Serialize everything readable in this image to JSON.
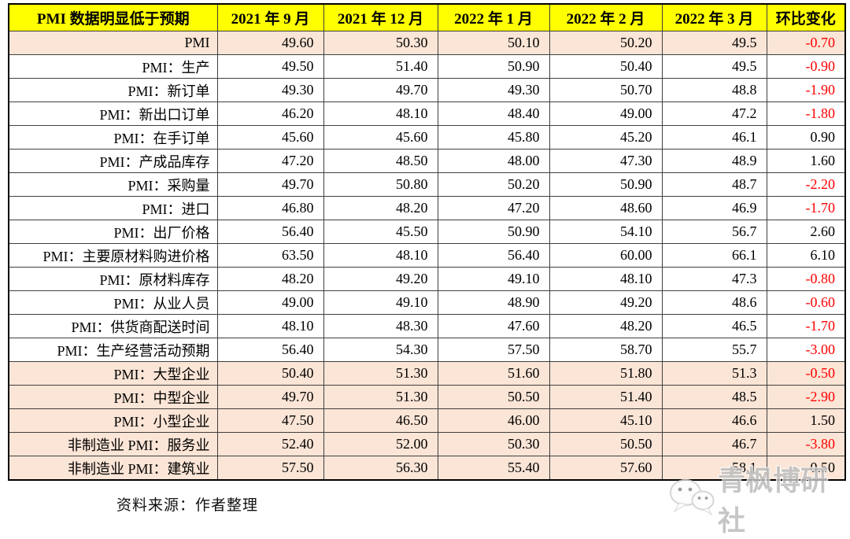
{
  "chart_data": {
    "type": "table",
    "title": "PMI 数据明显低于预期",
    "columns": [
      "PMI 数据明显低于预期",
      "2021 年 9 月",
      "2021 年 12 月",
      "2022 年 1 月",
      "2022 年 2 月",
      "2022 年 3 月",
      "环比变化"
    ],
    "rows": [
      {
        "label": "PMI",
        "values": [
          "49.60",
          "50.30",
          "50.10",
          "50.20",
          "49.5"
        ],
        "change": "-0.70",
        "highlight": true
      },
      {
        "label": "PMI：生产",
        "values": [
          "49.50",
          "51.40",
          "50.90",
          "50.40",
          "49.5"
        ],
        "change": "-0.90",
        "highlight": false
      },
      {
        "label": "PMI：新订单",
        "values": [
          "49.30",
          "49.70",
          "49.30",
          "50.70",
          "48.8"
        ],
        "change": "-1.90",
        "highlight": false
      },
      {
        "label": "PMI：新出口订单",
        "values": [
          "46.20",
          "48.10",
          "48.40",
          "49.00",
          "47.2"
        ],
        "change": "-1.80",
        "highlight": false
      },
      {
        "label": "PMI：在手订单",
        "values": [
          "45.60",
          "45.60",
          "45.80",
          "45.20",
          "46.1"
        ],
        "change": "0.90",
        "highlight": false
      },
      {
        "label": "PMI：产成品库存",
        "values": [
          "47.20",
          "48.50",
          "48.00",
          "47.30",
          "48.9"
        ],
        "change": "1.60",
        "highlight": false
      },
      {
        "label": "PMI：采购量",
        "values": [
          "49.70",
          "50.80",
          "50.20",
          "50.90",
          "48.7"
        ],
        "change": "-2.20",
        "highlight": false
      },
      {
        "label": "PMI：进口",
        "values": [
          "46.80",
          "48.20",
          "47.20",
          "48.60",
          "46.9"
        ],
        "change": "-1.70",
        "highlight": false
      },
      {
        "label": "PMI：出厂价格",
        "values": [
          "56.40",
          "45.50",
          "50.90",
          "54.10",
          "56.7"
        ],
        "change": "2.60",
        "highlight": false
      },
      {
        "label": "PMI：主要原材料购进价格",
        "values": [
          "63.50",
          "48.10",
          "56.40",
          "60.00",
          "66.1"
        ],
        "change": "6.10",
        "highlight": false
      },
      {
        "label": "PMI：原材料库存",
        "values": [
          "48.20",
          "49.20",
          "49.10",
          "48.10",
          "47.3"
        ],
        "change": "-0.80",
        "highlight": false
      },
      {
        "label": "PMI：从业人员",
        "values": [
          "49.00",
          "49.10",
          "48.90",
          "49.20",
          "48.6"
        ],
        "change": "-0.60",
        "highlight": false
      },
      {
        "label": "PMI：供货商配送时间",
        "values": [
          "48.10",
          "48.30",
          "47.60",
          "48.20",
          "46.5"
        ],
        "change": "-1.70",
        "highlight": false
      },
      {
        "label": "PMI：生产经营活动预期",
        "values": [
          "56.40",
          "54.30",
          "57.50",
          "58.70",
          "55.7"
        ],
        "change": "-3.00",
        "highlight": false
      },
      {
        "label": "PMI：大型企业",
        "values": [
          "50.40",
          "51.30",
          "51.60",
          "51.80",
          "51.3"
        ],
        "change": "-0.50",
        "highlight": true
      },
      {
        "label": "PMI：中型企业",
        "values": [
          "49.70",
          "51.30",
          "50.50",
          "51.40",
          "48.5"
        ],
        "change": "-2.90",
        "highlight": true
      },
      {
        "label": "PMI：小型企业",
        "values": [
          "47.50",
          "46.50",
          "46.00",
          "45.10",
          "46.6"
        ],
        "change": "1.50",
        "highlight": true
      },
      {
        "label": "非制造业 PMI：服务业",
        "values": [
          "52.40",
          "52.00",
          "50.30",
          "50.50",
          "46.7"
        ],
        "change": "-3.80",
        "highlight": true
      },
      {
        "label": "非制造业 PMI：建筑业",
        "values": [
          "57.50",
          "56.30",
          "55.40",
          "57.60",
          "58.1"
        ],
        "change": "0.50",
        "highlight": true
      }
    ],
    "layout": {
      "grid": true,
      "header_style": "yellow",
      "highlight_style": "peach"
    }
  },
  "footer": {
    "source": "资料来源：作者整理"
  },
  "watermark": {
    "text": "青枫博研社",
    "icon": "wechat-icon"
  },
  "colors": {
    "header_bg": "#ffff00",
    "highlight_bg": "#fbe5d6",
    "negative_value": "#ff0000",
    "text": "#000000",
    "border": "#3f3f3f",
    "watermark_gray": "#bdbdbd"
  }
}
